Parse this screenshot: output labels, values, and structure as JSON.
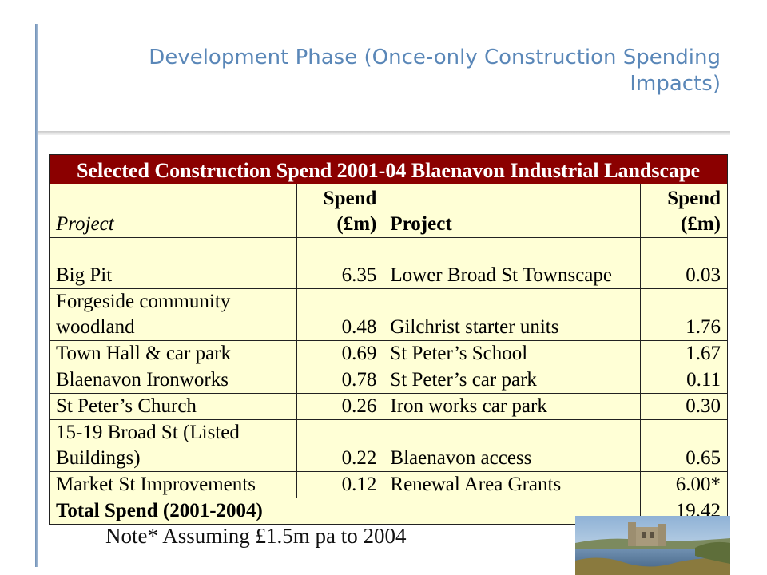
{
  "slide": {
    "title": "Development Phase (Once-only Construction Spending Impacts)"
  },
  "table": {
    "caption": "Selected Construction Spend 2001-04 Blaenavon Industrial Landscape",
    "header": {
      "project_left": "Project",
      "spend_left": "Spend (£m)",
      "project_right": "Project",
      "spend_right": "Spend (£m)"
    },
    "rows": [
      {
        "p1": "Big Pit",
        "s1": "6.35",
        "p2": "Lower Broad St Townscape",
        "s2": "0.03"
      },
      {
        "p1": "Forgeside community woodland",
        "s1": "0.48",
        "p2": "Gilchrist starter units",
        "s2": "1.76"
      },
      {
        "p1": "Town Hall & car park",
        "s1": "0.69",
        "p2": "St Peter’s School",
        "s2": "1.67"
      },
      {
        "p1": "Blaenavon Ironworks",
        "s1": "0.78",
        "p2": "St Peter’s car park",
        "s2": "0.11"
      },
      {
        "p1": "St Peter’s Church",
        "s1": "0.26",
        "p2": "Iron works car park",
        "s2": "0.30"
      },
      {
        "p1": "15-19 Broad St (Listed Buildings)",
        "s1": "0.22",
        "p2": "Blaenavon access",
        "s2": "0.65"
      },
      {
        "p1": "Market St Improvements",
        "s1": "0.12",
        "p2": "Renewal Area Grants",
        "s2": "6.00*"
      }
    ],
    "total": {
      "label": "Total Spend (2001-2004)",
      "value": "19.42"
    }
  },
  "note": "Note* Assuming £1.5m pa to 2004",
  "colors": {
    "title": "#5a87b8",
    "caption_bg": "#8b0000",
    "table_bg": "#ffffd6"
  }
}
